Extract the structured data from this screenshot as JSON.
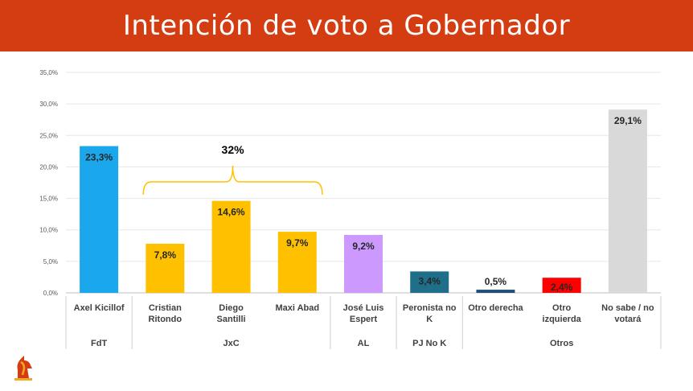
{
  "header": {
    "title": "Intención de voto a Gobernador"
  },
  "colors": {
    "header_bg": "#d43d12",
    "fdt": "#1aa7ec",
    "jxc": "#ffc000",
    "al": "#cc99ff",
    "pj_no_k": "#1f6f8b",
    "otro_derecha": "#1f4e79",
    "otro_izquierda": "#ff0000",
    "no_sabe": "#d9d9d9"
  },
  "chart_data": {
    "type": "bar",
    "title": "",
    "xlabel": "",
    "ylabel": "",
    "ylim": [
      0,
      35
    ],
    "y_ticks": [
      "0,0%",
      "5,0%",
      "10,0%",
      "15,0%",
      "20,0%",
      "25,0%",
      "30,0%",
      "35,0%"
    ],
    "grid": true,
    "categories": [
      "Axel Kicillof",
      "Cristian Ritondo",
      "Diego Santilli",
      "Maxi Abad",
      "José Luis Espert",
      "Peronista no K",
      "Otro derecha",
      "Otro izquierda",
      "No sabe / no votará"
    ],
    "values": [
      23.3,
      7.8,
      14.6,
      9.7,
      9.2,
      3.4,
      0.5,
      2.4,
      29.1
    ],
    "value_labels": [
      "23,3%",
      "7,8%",
      "14,6%",
      "9,7%",
      "9,2%",
      "3,4%",
      "0,5%",
      "2,4%",
      "29,1%"
    ],
    "bar_colors": [
      "#1aa7ec",
      "#ffc000",
      "#ffc000",
      "#ffc000",
      "#cc99ff",
      "#1f6f8b",
      "#1f4e79",
      "#ff0000",
      "#d9d9d9"
    ],
    "groups": [
      {
        "label": "FdT",
        "members": [
          "Axel Kicillof"
        ]
      },
      {
        "label": "JxC",
        "members": [
          "Cristian Ritondo",
          "Diego Santilli",
          "Maxi Abad"
        ]
      },
      {
        "label": "AL",
        "members": [
          "José Luis Espert"
        ]
      },
      {
        "label": "PJ No K",
        "members": [
          "Peronista no K"
        ]
      },
      {
        "label": "Otros",
        "members": [
          "Otro derecha",
          "Otro izquierda",
          "No sabe / no votará"
        ]
      }
    ],
    "annotations": [
      {
        "text": "32%",
        "spans": [
          "Cristian Ritondo",
          "Diego Santilli",
          "Maxi Abad"
        ]
      }
    ]
  }
}
